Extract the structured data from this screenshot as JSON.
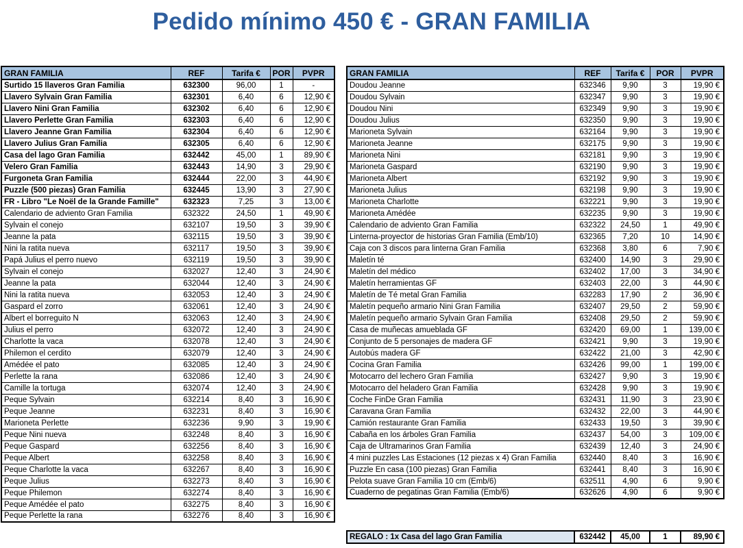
{
  "page": {
    "title": "Pedido mínimo 450 € - GRAN FAMILIA"
  },
  "colors": {
    "title": "#2E5E9E",
    "header_fill": "#A8C4E0",
    "regalo_fill": "#DCE6F1",
    "grid_border": "#000000"
  },
  "tables": {
    "left": {
      "headers": [
        "GRAN FAMILIA",
        "REF",
        "Tarifa €",
        "POR",
        "PVPR"
      ],
      "rows": [
        {
          "name": "Surtido 15 llaveros Gran Familia",
          "ref": "632300",
          "tarifa": "96,00",
          "por": "1",
          "pvpr": "-",
          "bold": true
        },
        {
          "name": "Llavero Sylvain Gran Familia",
          "ref": "632301",
          "tarifa": "6,40",
          "por": "6",
          "pvpr": "12,90 €",
          "bold": true
        },
        {
          "name": "Llavero Nini Gran Familia",
          "ref": "632302",
          "tarifa": "6,40",
          "por": "6",
          "pvpr": "12,90 €",
          "bold": true
        },
        {
          "name": "Llavero Perlette Gran Familia",
          "ref": "632303",
          "tarifa": "6,40",
          "por": "6",
          "pvpr": "12,90 €",
          "bold": true
        },
        {
          "name": "Llavero Jeanne Gran Familia",
          "ref": "632304",
          "tarifa": "6,40",
          "por": "6",
          "pvpr": "12,90 €",
          "bold": true
        },
        {
          "name": "Llavero Julius Gran Familia",
          "ref": "632305",
          "tarifa": "6,40",
          "por": "6",
          "pvpr": "12,90 €",
          "bold": true
        },
        {
          "name": "Casa del lago Gran Familia",
          "ref": "632442",
          "tarifa": "45,00",
          "por": "1",
          "pvpr": "89,90 €",
          "bold": true
        },
        {
          "name": "Velero  Gran Familia",
          "ref": "632443",
          "tarifa": "14,90",
          "por": "3",
          "pvpr": "29,90 €",
          "bold": true
        },
        {
          "name": "Furgoneta Gran Familia",
          "ref": "632444",
          "tarifa": "22,00",
          "por": "3",
          "pvpr": "44,90 €",
          "bold": true
        },
        {
          "name": "Puzzle (500 piezas) Gran Familia",
          "ref": "632445",
          "tarifa": "13,90",
          "por": "3",
          "pvpr": "27,90 €",
          "bold": true
        },
        {
          "name": "FR - Libro \"Le Noël de la Grande Famille\"",
          "ref": "632323",
          "tarifa": "7,25",
          "por": "3",
          "pvpr": "13,00 €",
          "bold": true
        },
        {
          "name": "Calendario de adviento Gran Familia",
          "ref": "632322",
          "tarifa": "24,50",
          "por": "1",
          "pvpr": "49,90 €"
        },
        {
          "name": "Sylvain el conejo",
          "ref": "632107",
          "tarifa": "19,50",
          "por": "3",
          "pvpr": "39,90 €"
        },
        {
          "name": "Jeanne la pata",
          "ref": "632115",
          "tarifa": "19,50",
          "por": "3",
          "pvpr": "39,90 €"
        },
        {
          "name": "Nini la ratita nueva",
          "ref": "632117",
          "tarifa": "19,50",
          "por": "3",
          "pvpr": "39,90 €"
        },
        {
          "name": "Papá Julius el perro nuevo",
          "ref": "632119",
          "tarifa": "19,50",
          "por": "3",
          "pvpr": "39,90 €"
        },
        {
          "name": "Sylvain el conejo",
          "ref": "632027",
          "tarifa": "12,40",
          "por": "3",
          "pvpr": "24,90 €"
        },
        {
          "name": "Jeanne la pata",
          "ref": "632044",
          "tarifa": "12,40",
          "por": "3",
          "pvpr": "24,90 €"
        },
        {
          "name": "Nini la ratita nueva",
          "ref": "632053",
          "tarifa": "12,40",
          "por": "3",
          "pvpr": "24,90 €"
        },
        {
          "name": "Gaspard el zorro",
          "ref": "632061",
          "tarifa": "12,40",
          "por": "3",
          "pvpr": "24,90 €"
        },
        {
          "name": "Albert el borreguito N",
          "ref": "632063",
          "tarifa": "12,40",
          "por": "3",
          "pvpr": "24,90 €"
        },
        {
          "name": "Julius el perro",
          "ref": "632072",
          "tarifa": "12,40",
          "por": "3",
          "pvpr": "24,90 €"
        },
        {
          "name": "Charlotte la vaca",
          "ref": "632078",
          "tarifa": "12,40",
          "por": "3",
          "pvpr": "24,90 €"
        },
        {
          "name": "Philemon el cerdito",
          "ref": "632079",
          "tarifa": "12,40",
          "por": "3",
          "pvpr": "24,90 €"
        },
        {
          "name": "Amédée el pato",
          "ref": "632085",
          "tarifa": "12,40",
          "por": "3",
          "pvpr": "24,90 €"
        },
        {
          "name": "Perlette la rana",
          "ref": "632086",
          "tarifa": "12,40",
          "por": "3",
          "pvpr": "24,90 €"
        },
        {
          "name": "Camille la tortuga",
          "ref": "632074",
          "tarifa": "12,40",
          "por": "3",
          "pvpr": "24,90 €"
        },
        {
          "name": "Peque Sylvain",
          "ref": "632214",
          "tarifa": "8,40",
          "por": "3",
          "pvpr": "16,90 €"
        },
        {
          "name": "Peque Jeanne",
          "ref": "632231",
          "tarifa": "8,40",
          "por": "3",
          "pvpr": "16,90 €"
        },
        {
          "name": "Marioneta Perlette",
          "ref": "632236",
          "tarifa": "9,90",
          "por": "3",
          "pvpr": "19,90 €"
        },
        {
          "name": "Peque Nini nueva",
          "ref": "632248",
          "tarifa": "8,40",
          "por": "3",
          "pvpr": "16,90 €"
        },
        {
          "name": "Peque Gaspard",
          "ref": "632256",
          "tarifa": "8,40",
          "por": "3",
          "pvpr": "16,90 €"
        },
        {
          "name": "Peque Albert",
          "ref": "632258",
          "tarifa": "8,40",
          "por": "3",
          "pvpr": "16,90 €"
        },
        {
          "name": "Peque Charlotte la vaca",
          "ref": "632267",
          "tarifa": "8,40",
          "por": "3",
          "pvpr": "16,90 €"
        },
        {
          "name": "Peque Julius",
          "ref": "632273",
          "tarifa": "8,40",
          "por": "3",
          "pvpr": "16,90 €"
        },
        {
          "name": "Peque Philemon",
          "ref": "632274",
          "tarifa": "8,40",
          "por": "3",
          "pvpr": "16,90 €"
        },
        {
          "name": "Peque Amédée el pato",
          "ref": "632275",
          "tarifa": "8,40",
          "por": "3",
          "pvpr": "16,90 €"
        },
        {
          "name": "Peque Perlette la rana",
          "ref": "632276",
          "tarifa": "8,40",
          "por": "3",
          "pvpr": "16,90 €"
        }
      ]
    },
    "right": {
      "headers": [
        "GRAN FAMILIA",
        "REF",
        "Tarifa €",
        "POR",
        "PVPR"
      ],
      "rows": [
        {
          "name": "Doudou Jeanne",
          "ref": "632346",
          "tarifa": "9,90",
          "por": "3",
          "pvpr": "19,90 €"
        },
        {
          "name": "Doudou Sylvain",
          "ref": "632347",
          "tarifa": "9,90",
          "por": "3",
          "pvpr": "19,90 €"
        },
        {
          "name": "Doudou Nini",
          "ref": "632349",
          "tarifa": "9,90",
          "por": "3",
          "pvpr": "19,90 €"
        },
        {
          "name": "Doudou Julius",
          "ref": "632350",
          "tarifa": "9,90",
          "por": "3",
          "pvpr": "19,90 €"
        },
        {
          "name": "Marioneta Sylvain",
          "ref": "632164",
          "tarifa": "9,90",
          "por": "3",
          "pvpr": "19,90 €"
        },
        {
          "name": "Marioneta Jeanne",
          "ref": "632175",
          "tarifa": "9,90",
          "por": "3",
          "pvpr": "19,90 €"
        },
        {
          "name": "Marioneta Nini",
          "ref": "632181",
          "tarifa": "9,90",
          "por": "3",
          "pvpr": "19,90 €"
        },
        {
          "name": "Marioneta Gaspard",
          "ref": "632190",
          "tarifa": "9,90",
          "por": "3",
          "pvpr": "19,90 €"
        },
        {
          "name": "Marioneta Albert",
          "ref": "632192",
          "tarifa": "9,90",
          "por": "3",
          "pvpr": "19,90 €"
        },
        {
          "name": "Marioneta Julius",
          "ref": "632198",
          "tarifa": "9,90",
          "por": "3",
          "pvpr": "19,90 €"
        },
        {
          "name": "Marioneta Charlotte",
          "ref": "632221",
          "tarifa": "9,90",
          "por": "3",
          "pvpr": "19,90 €"
        },
        {
          "name": "Marioneta Amédée",
          "ref": "632235",
          "tarifa": "9,90",
          "por": "3",
          "pvpr": "19,90 €"
        },
        {
          "name": "Calendario de adviento Gran Familia",
          "ref": "632322",
          "tarifa": "24,50",
          "por": "1",
          "pvpr": "49,90 €"
        },
        {
          "name": "Linterna-proyector de historias Gran Familia (Emb/10)",
          "ref": "632365",
          "tarifa": "7,20",
          "por": "10",
          "pvpr": "14,90 €"
        },
        {
          "name": "Caja con 3 discos para linterna Gran Familia",
          "ref": "632368",
          "tarifa": "3,80",
          "por": "6",
          "pvpr": "7,90 €"
        },
        {
          "name": "Maletín té",
          "ref": "632400",
          "tarifa": "14,90",
          "por": "3",
          "pvpr": "29,90 €"
        },
        {
          "name": "Maletín del médico",
          "ref": "632402",
          "tarifa": "17,00",
          "por": "3",
          "pvpr": "34,90 €"
        },
        {
          "name": "Maletín herramientas GF",
          "ref": "632403",
          "tarifa": "22,00",
          "por": "3",
          "pvpr": "44,90 €"
        },
        {
          "name": "Maletín de Té metal Gran Familia",
          "ref": "632283",
          "tarifa": "17,90",
          "por": "2",
          "pvpr": "36,90 €"
        },
        {
          "name": "Maletín pequeño armario Nini Gran Familia",
          "ref": "632407",
          "tarifa": "29,50",
          "por": "2",
          "pvpr": "59,90 €"
        },
        {
          "name": "Maletín pequeño armario Sylvain Gran Familia",
          "ref": "632408",
          "tarifa": "29,50",
          "por": "2",
          "pvpr": "59,90 €"
        },
        {
          "name": "Casa de muñecas amueblada GF",
          "ref": "632420",
          "tarifa": "69,00",
          "por": "1",
          "pvpr": "139,00 €"
        },
        {
          "name": "Conjunto de 5 personajes de madera GF",
          "ref": "632421",
          "tarifa": "9,90",
          "por": "3",
          "pvpr": "19,90 €"
        },
        {
          "name": "Autobús madera GF",
          "ref": "632422",
          "tarifa": "21,00",
          "por": "3",
          "pvpr": "42,90 €"
        },
        {
          "name": "Cocina Gran Familia",
          "ref": "632426",
          "tarifa": "99,00",
          "por": "1",
          "pvpr": "199,00 €"
        },
        {
          "name": "Motocarro del lechero Gran Familia",
          "ref": "632427",
          "tarifa": "9,90",
          "por": "3",
          "pvpr": "19,90 €"
        },
        {
          "name": "Motocarro del heladero Gran Familia",
          "ref": "632428",
          "tarifa": "9,90",
          "por": "3",
          "pvpr": "19,90 €"
        },
        {
          "name": "Coche FinDe Gran Familia",
          "ref": "632431",
          "tarifa": "11,90",
          "por": "3",
          "pvpr": "23,90 €"
        },
        {
          "name": "Caravana Gran Familia",
          "ref": "632432",
          "tarifa": "22,00",
          "por": "3",
          "pvpr": "44,90 €"
        },
        {
          "name": "Camión restaurante Gran Familia",
          "ref": "632433",
          "tarifa": "19,50",
          "por": "3",
          "pvpr": "39,90 €"
        },
        {
          "name": "Cabaña en los árboles Gran Familia",
          "ref": "632437",
          "tarifa": "54,00",
          "por": "3",
          "pvpr": "109,00 €"
        },
        {
          "name": "Caja de Ultramarinos Gran Familia",
          "ref": "632439",
          "tarifa": "12,40",
          "por": "3",
          "pvpr": "24,90 €"
        },
        {
          "name": "4 mini puzzles Las Estaciones (12 piezas x 4) Gran Familia",
          "ref": "632440",
          "tarifa": "8,40",
          "por": "3",
          "pvpr": "16,90 €"
        },
        {
          "name": "Puzzle En casa (100 piezas) Gran Familia",
          "ref": "632441",
          "tarifa": "8,40",
          "por": "3",
          "pvpr": "16,90 €"
        },
        {
          "name": "Pelota suave Gran Familia 10 cm (Emb/6)",
          "ref": "632511",
          "tarifa": "4,90",
          "por": "6",
          "pvpr": "9,90 €"
        },
        {
          "name": "Cuaderno de pegatinas Gran Familia (Emb/6)",
          "ref": "632626",
          "tarifa": "4,90",
          "por": "6",
          "pvpr": "9,90 €"
        }
      ]
    },
    "regalo": {
      "name": "REGALO : 1x Casa del lago Gran Familia",
      "ref": "632442",
      "tarifa": "45,00",
      "por": "1",
      "pvpr": "89,90 €"
    }
  }
}
